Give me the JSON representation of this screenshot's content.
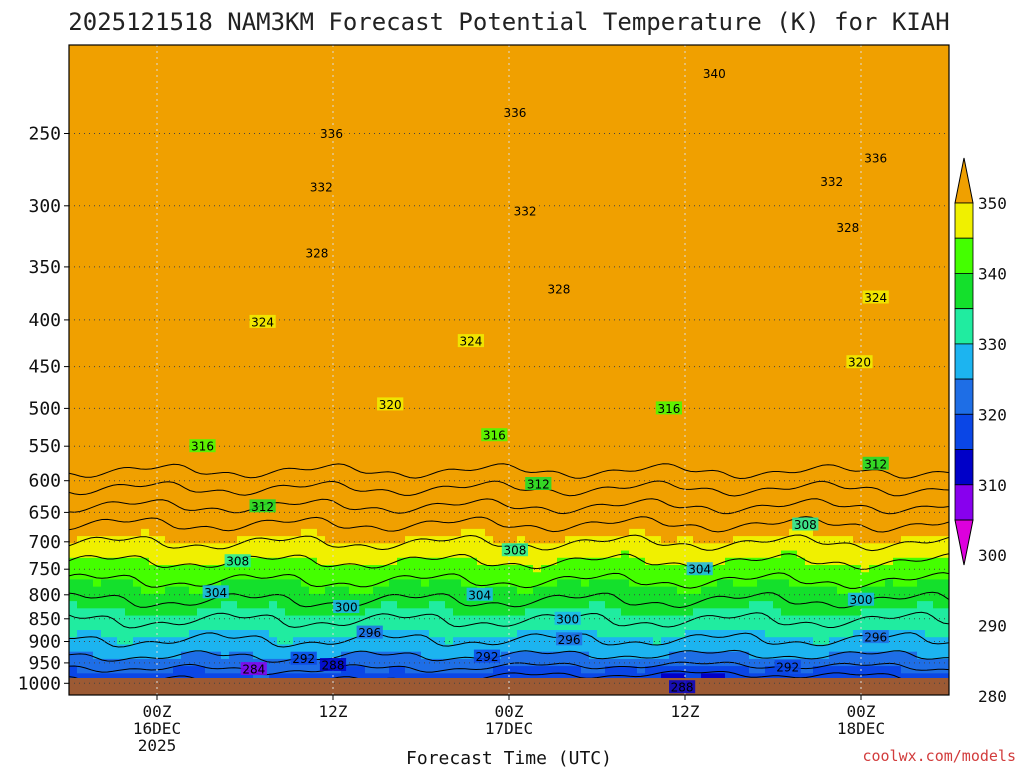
{
  "chart_data": {
    "type": "heatmap",
    "title": "2025121518 NAM3KM Forecast Potential Temperature (K) for KIAH",
    "xlabel": "Forecast Time (UTC)",
    "ylabel": "",
    "y_scale": "pressure (hPa), inverted, log",
    "pressure_levels": [
      250,
      300,
      350,
      400,
      450,
      500,
      550,
      600,
      650,
      700,
      750,
      800,
      850,
      900,
      950,
      1000
    ],
    "x_ticks": [
      {
        "hour": 6,
        "lines": [
          "00Z",
          "16DEC",
          "2025"
        ]
      },
      {
        "hour": 18,
        "lines": [
          "12Z"
        ]
      },
      {
        "hour": 30,
        "lines": [
          "00Z",
          "17DEC"
        ]
      },
      {
        "hour": 42,
        "lines": [
          "12Z"
        ]
      },
      {
        "hour": 54,
        "lines": [
          "00Z",
          "18DEC"
        ]
      }
    ],
    "forecast_hours": [
      0,
      60
    ],
    "p_range": [
      200,
      1030
    ],
    "colorbar": {
      "levels": [
        280,
        290,
        300,
        310,
        320,
        330,
        340,
        350
      ],
      "labels": [
        "280",
        "290",
        "300",
        "310",
        "320",
        "330",
        "340",
        "350"
      ],
      "colors": [
        "#dd00dd",
        "#8800ee",
        "#0000c8",
        "#0a46e6",
        "#1e6ee6",
        "#1cb4f0",
        "#20eca0",
        "#14e02c",
        "#44ff00",
        "#f0f000",
        "#f0a000"
      ]
    },
    "contour_levels": [
      284,
      288,
      292,
      296,
      300,
      304,
      308,
      312,
      316,
      320,
      324,
      328,
      332,
      336,
      340
    ],
    "contour_labels": [
      {
        "value": "284",
        "hour": 12.6,
        "p": 965
      },
      {
        "value": "288",
        "hour": 18.0,
        "p": 955
      },
      {
        "value": "288",
        "hour": 41.8,
        "p": 1010
      },
      {
        "value": "292",
        "hour": 16.0,
        "p": 940
      },
      {
        "value": "292",
        "hour": 28.5,
        "p": 935
      },
      {
        "value": "292",
        "hour": 49.0,
        "p": 960
      },
      {
        "value": "296",
        "hour": 20.5,
        "p": 880
      },
      {
        "value": "296",
        "hour": 34.1,
        "p": 895
      },
      {
        "value": "296",
        "hour": 55.0,
        "p": 890
      },
      {
        "value": "300",
        "hour": 18.9,
        "p": 825
      },
      {
        "value": "300",
        "hour": 34.0,
        "p": 850
      },
      {
        "value": "300",
        "hour": 54.0,
        "p": 810
      },
      {
        "value": "304",
        "hour": 10.0,
        "p": 795
      },
      {
        "value": "304",
        "hour": 28.0,
        "p": 800
      },
      {
        "value": "304",
        "hour": 43.0,
        "p": 750
      },
      {
        "value": "308",
        "hour": 11.5,
        "p": 735
      },
      {
        "value": "308",
        "hour": 30.4,
        "p": 715
      },
      {
        "value": "308",
        "hour": 50.2,
        "p": 670
      },
      {
        "value": "312",
        "hour": 13.2,
        "p": 640
      },
      {
        "value": "312",
        "hour": 32.0,
        "p": 605
      },
      {
        "value": "312",
        "hour": 55.0,
        "p": 575
      },
      {
        "value": "316",
        "hour": 9.1,
        "p": 550
      },
      {
        "value": "316",
        "hour": 29.0,
        "p": 535
      },
      {
        "value": "316",
        "hour": 40.9,
        "p": 500
      },
      {
        "value": "320",
        "hour": 21.9,
        "p": 495
      },
      {
        "value": "320",
        "hour": 53.9,
        "p": 445
      },
      {
        "value": "324",
        "hour": 13.2,
        "p": 402
      },
      {
        "value": "324",
        "hour": 27.4,
        "p": 422
      },
      {
        "value": "324",
        "hour": 55.0,
        "p": 378
      },
      {
        "value": "328",
        "hour": 16.9,
        "p": 338
      },
      {
        "value": "328",
        "hour": 33.4,
        "p": 370
      },
      {
        "value": "328",
        "hour": 53.1,
        "p": 317
      },
      {
        "value": "332",
        "hour": 17.2,
        "p": 286
      },
      {
        "value": "332",
        "hour": 31.1,
        "p": 304
      },
      {
        "value": "332",
        "hour": 52.0,
        "p": 282
      },
      {
        "value": "336",
        "hour": 17.9,
        "p": 250
      },
      {
        "value": "336",
        "hour": 30.4,
        "p": 237
      },
      {
        "value": "336",
        "hour": 55.0,
        "p": 266
      },
      {
        "value": "340",
        "hour": 44.0,
        "p": 215
      }
    ],
    "credit": "coolwx.com/models"
  }
}
